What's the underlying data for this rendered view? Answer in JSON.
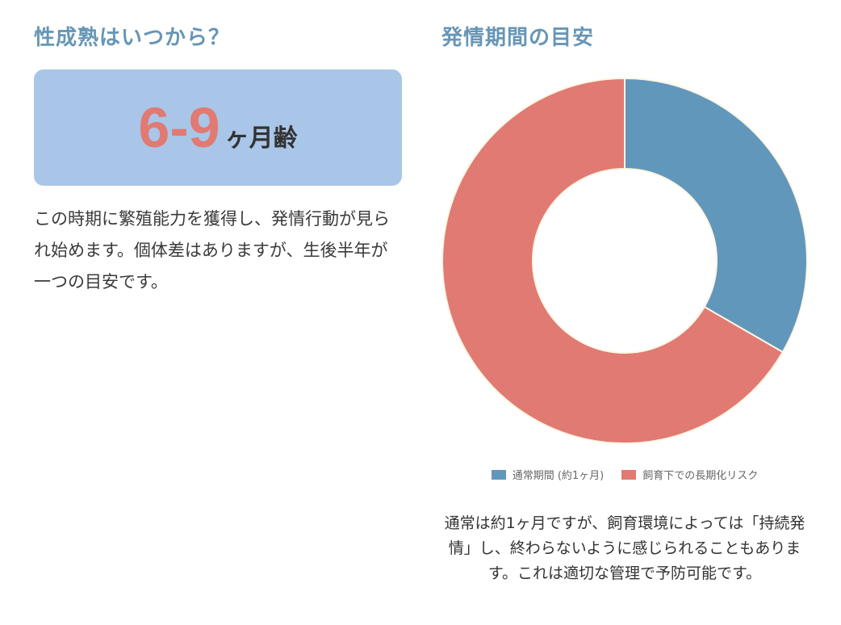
{
  "left": {
    "title": "性成熟はいつから？",
    "age_range": "6-9",
    "age_unit": "ヶ月齢",
    "description": "この時期に繁殖能力を獲得し、発情行動が見られ始めます。個体差はありますが、生後半年が一つの目安です。"
  },
  "right": {
    "title": "発情期間の目安",
    "note": "通常は約1ヶ月ですが、飼育環境によっては「持続発情」し、終わらないように感じられることもあります。これは適切な管理で予防可能です。"
  },
  "colors": {
    "title": "#6796b6",
    "card_bg": "#a9c6e8",
    "accent": "#e07a72",
    "series_normal": "#6297bc",
    "series_risk": "#e07a72",
    "slice_border": "#fdf6e3"
  },
  "chart_data": {
    "type": "pie",
    "variant": "doughnut",
    "categories": [
      "通常期間 (約1ヶ月)",
      "飼育下での長期化リスク"
    ],
    "values": [
      1,
      2
    ],
    "colors": [
      "#6297bc",
      "#e07a72"
    ],
    "legend_position": "bottom"
  }
}
